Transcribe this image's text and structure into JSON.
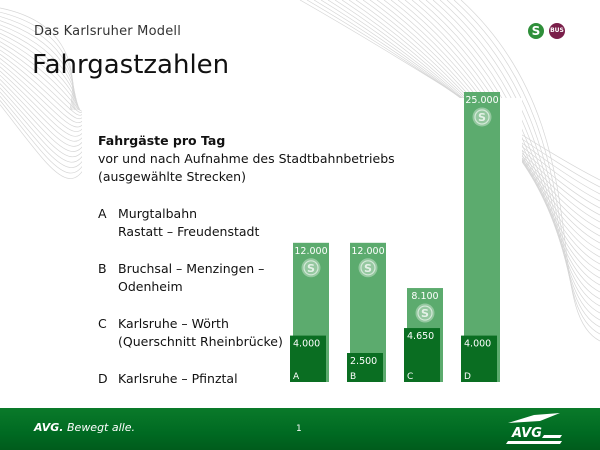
{
  "header": {
    "subtitle": "Das Karlsruher Modell",
    "title": "Fahrgastzahlen",
    "logo_s": "S",
    "logo_bus": "BUS"
  },
  "text": {
    "heading": "Fahrgäste pro Tag",
    "desc1": "vor und nach Aufnahme des Stadtbahnbetriebs",
    "desc2": "(ausgewählte Strecken)"
  },
  "routes": [
    {
      "letter": "A",
      "line1": "Murgtalbahn",
      "line2": "Rastatt – Freudenstadt"
    },
    {
      "letter": "B",
      "line1": "Bruchsal – Menzingen –",
      "line2": "Odenheim"
    },
    {
      "letter": "C",
      "line1": "Karlsruhe – Wörth",
      "line2": "(Querschnitt Rheinbrücke)"
    },
    {
      "letter": "D",
      "line1": "Karlsruhe – Pfinztal",
      "line2": ""
    }
  ],
  "footer": {
    "brand": "AVG.",
    "slogan": "Bewegt alle.",
    "page": "1",
    "logo_text": "AVG"
  },
  "colors": {
    "before": "#0a6e22",
    "after": "#5cab6e",
    "footer": "#0a7a2a"
  },
  "chart_data": {
    "type": "bar",
    "categories": [
      "A",
      "B",
      "C",
      "D"
    ],
    "series": [
      {
        "values": [
          4000,
          2500,
          4650,
          4000
        ],
        "labels": [
          "4.000",
          "2.500",
          "4.650",
          "4.000"
        ]
      },
      {
        "values": [
          12000,
          12000,
          8100,
          25000
        ],
        "labels": [
          "12.000",
          "12.000",
          "8.100",
          "25.000"
        ]
      }
    ],
    "ylim": [
      0,
      25000
    ],
    "grid": false,
    "icon": "s-bahn-icon"
  }
}
